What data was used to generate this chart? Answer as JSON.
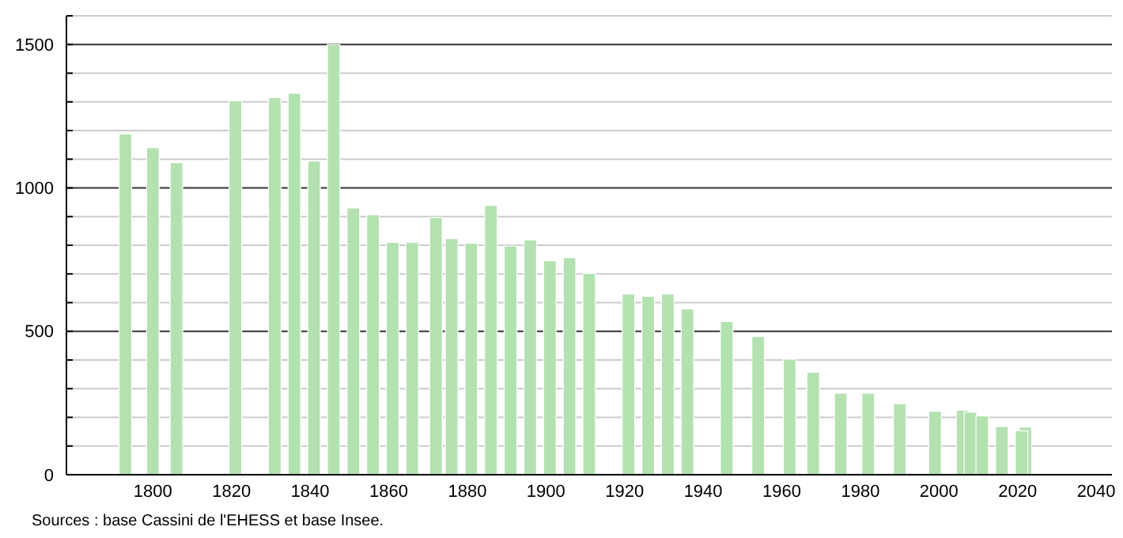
{
  "chart_data": {
    "type": "bar",
    "annotations": [
      "Sources : base Cassini de l'EHESS et base Insee."
    ],
    "x": [
      1793,
      1800,
      1806,
      1821,
      1831,
      1836,
      1841,
      1846,
      1851,
      1856,
      1861,
      1866,
      1872,
      1876,
      1881,
      1886,
      1891,
      1896,
      1901,
      1906,
      1911,
      1921,
      1926,
      1931,
      1936,
      1946,
      1954,
      1962,
      1968,
      1975,
      1982,
      1990,
      1999,
      2006,
      2008,
      2011,
      2016,
      2021,
      2022
    ],
    "values": [
      1188,
      1140,
      1088,
      1304,
      1315,
      1330,
      1094,
      1500,
      930,
      906,
      810,
      810,
      897,
      823,
      807,
      939,
      797,
      819,
      746,
      757,
      702,
      630,
      622,
      630,
      578,
      534,
      482,
      403,
      357,
      284,
      284,
      247,
      221,
      225,
      218,
      205,
      168,
      153,
      166
    ],
    "color": "#b3e2b0",
    "xlim": [
      1778,
      2044
    ],
    "xticks": [
      1800,
      1820,
      1840,
      1860,
      1880,
      1900,
      1920,
      1940,
      1960,
      1980,
      2000,
      2020,
      2040
    ],
    "ylim": [
      0,
      1600
    ],
    "yticks": [
      0,
      {
        "value": 100,
        "label": null
      },
      {
        "value": 200,
        "label": null
      },
      {
        "value": 300,
        "label": null
      },
      {
        "value": 400,
        "label": null
      },
      500,
      {
        "value": 600,
        "label": null
      },
      {
        "value": 700,
        "label": null
      },
      {
        "value": 800,
        "label": null
      },
      {
        "value": 900,
        "label": null
      },
      1000,
      {
        "value": 1100,
        "label": null
      },
      {
        "value": 1200,
        "label": null
      },
      {
        "value": 1300,
        "label": null
      },
      {
        "value": 1400,
        "label": null
      },
      1500,
      {
        "value": 1600,
        "label": null
      }
    ],
    "grid": "y"
  }
}
